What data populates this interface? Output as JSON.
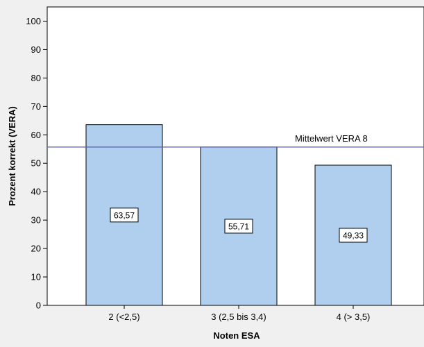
{
  "chart_data": {
    "type": "bar",
    "categories": [
      "2 (<2,5)",
      "3 (2,5 bis 3,4)",
      "4 (> 3,5)"
    ],
    "values": [
      63.57,
      55.71,
      49.33
    ],
    "data_labels": [
      "63,57",
      "55,71",
      "49,33"
    ],
    "title": "",
    "xlabel": "Noten  ESA",
    "ylabel": "Prozent korrekt (VERA)",
    "ylim": [
      0,
      105
    ],
    "yticks": [
      0,
      10,
      20,
      30,
      40,
      50,
      60,
      70,
      80,
      90,
      100
    ],
    "grid": false,
    "reference_line": {
      "label": "Mittelwert VERA 8",
      "value": 55.71
    },
    "colors": {
      "bar_fill": "#b0cfee",
      "bar_stroke": "#000000",
      "plot_background": "#ffffff",
      "page_background": "#f0f0f0",
      "reference_line": "#5a5ab4"
    }
  }
}
